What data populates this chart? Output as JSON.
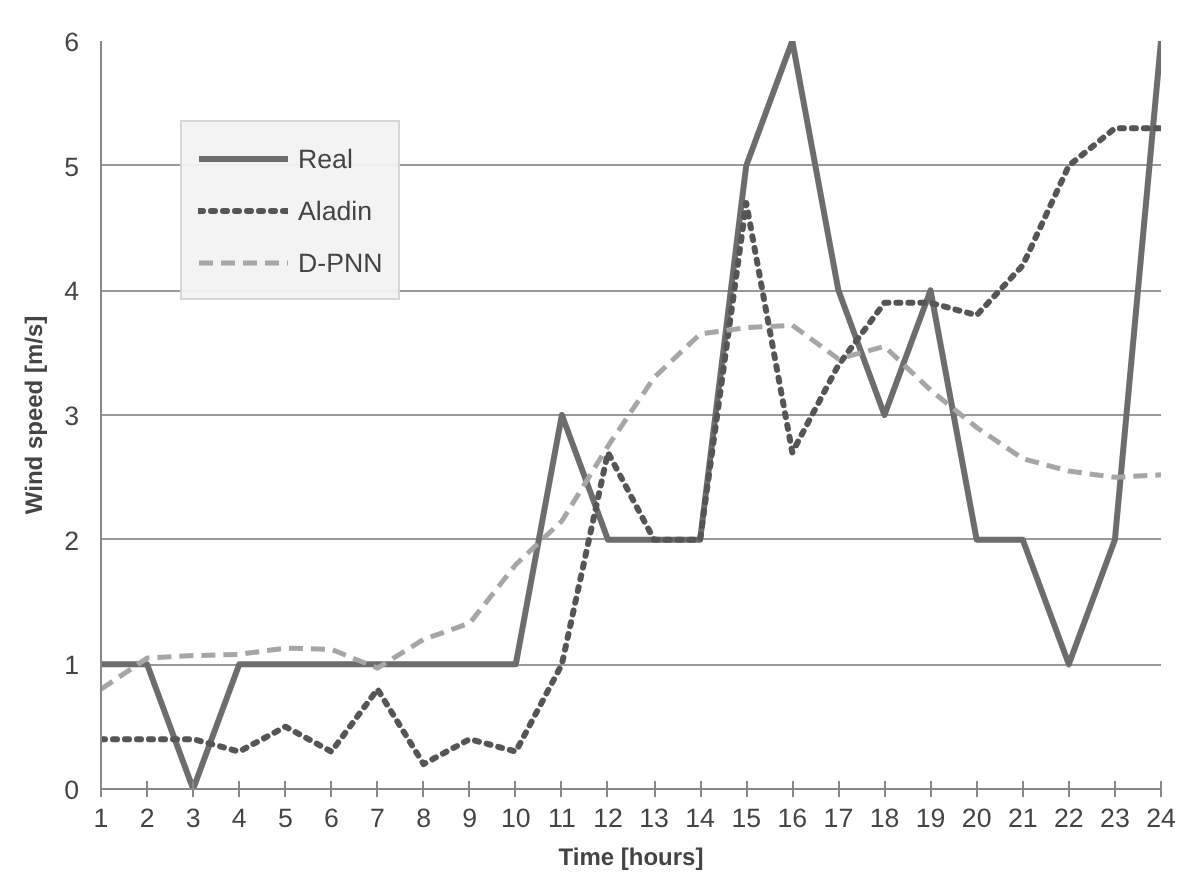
{
  "chart_data": {
    "type": "line",
    "xlabel": "Time [hours]",
    "ylabel": "Wind speed [m/s]",
    "x": [
      1,
      2,
      3,
      4,
      5,
      6,
      7,
      8,
      9,
      10,
      11,
      12,
      13,
      14,
      15,
      16,
      17,
      18,
      19,
      20,
      21,
      22,
      23,
      24
    ],
    "series": [
      {
        "name": "Real",
        "color": "#6d6d6d",
        "line_style": "solid",
        "values": [
          1,
          1,
          0,
          1,
          1,
          1,
          1,
          1,
          1,
          1,
          3,
          2,
          2,
          2,
          5,
          6,
          4,
          3,
          4,
          2,
          2,
          1,
          2,
          6
        ]
      },
      {
        "name": "Aladin",
        "color": "#555555",
        "line_style": "dotted",
        "values": [
          0.4,
          0.4,
          0.4,
          0.3,
          0.5,
          0.3,
          0.8,
          0.2,
          0.4,
          0.3,
          1.0,
          2.7,
          2.0,
          2.0,
          4.7,
          2.7,
          3.4,
          3.9,
          3.9,
          3.8,
          4.2,
          5.0,
          5.3,
          5.3
        ]
      },
      {
        "name": "D-PNN",
        "color": "#a6a6a6",
        "line_style": "dashed",
        "values": [
          0.8,
          1.05,
          1.07,
          1.08,
          1.13,
          1.12,
          0.97,
          1.2,
          1.33,
          1.8,
          2.15,
          2.75,
          3.3,
          3.65,
          3.7,
          3.72,
          3.45,
          3.55,
          3.2,
          2.9,
          2.65,
          2.55,
          2.5,
          2.52
        ]
      }
    ],
    "xlim": [
      1,
      24
    ],
    "xticks": [
      1,
      2,
      3,
      4,
      5,
      6,
      7,
      8,
      9,
      10,
      11,
      12,
      13,
      14,
      15,
      16,
      17,
      18,
      19,
      20,
      21,
      22,
      23,
      24
    ],
    "ylim": [
      0,
      6
    ],
    "yticks": [
      0,
      1,
      2,
      3,
      4,
      5,
      6
    ],
    "grid": "y",
    "legend": "top left"
  }
}
